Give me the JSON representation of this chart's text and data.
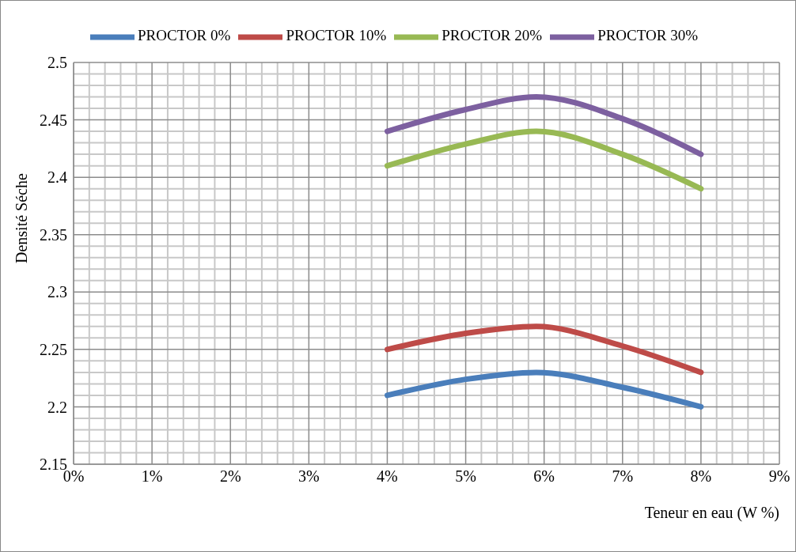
{
  "chart_data": {
    "type": "line",
    "xlabel": "Teneur en eau (W %)",
    "ylabel": "Densité Séche",
    "x": [
      4,
      5,
      5.9,
      7,
      8
    ],
    "series": [
      {
        "name": "PROCTOR 0%",
        "color": "#4a7ebb",
        "values": [
          2.21,
          2.224,
          2.23,
          2.217,
          2.2
        ]
      },
      {
        "name": "PROCTOR 10%",
        "color": "#be4b48",
        "values": [
          2.25,
          2.264,
          2.27,
          2.253,
          2.23
        ]
      },
      {
        "name": "PROCTOR 20%",
        "color": "#98b954",
        "values": [
          2.41,
          2.429,
          2.44,
          2.42,
          2.39
        ]
      },
      {
        "name": "PROCTOR 30%",
        "color": "#7d60a0",
        "values": [
          2.44,
          2.459,
          2.47,
          2.451,
          2.42
        ]
      }
    ],
    "xlim": [
      0,
      9
    ],
    "xticks": [
      {
        "value": 0,
        "label": "0%"
      },
      {
        "value": 1,
        "label": "1%"
      },
      {
        "value": 2,
        "label": "2%"
      },
      {
        "value": 3,
        "label": "3%"
      },
      {
        "value": 4,
        "label": "4%"
      },
      {
        "value": 5,
        "label": "5%"
      },
      {
        "value": 6,
        "label": "6%"
      },
      {
        "value": 7,
        "label": "7%"
      },
      {
        "value": 8,
        "label": "8%"
      },
      {
        "value": 9,
        "label": "9%"
      }
    ],
    "ylim": [
      2.15,
      2.5
    ],
    "yticks": [
      2.15,
      2.2,
      2.25,
      2.3,
      2.35,
      2.4,
      2.45,
      2.5
    ],
    "grid": true,
    "legend": "top",
    "marker": "none",
    "line_style": "solid"
  }
}
